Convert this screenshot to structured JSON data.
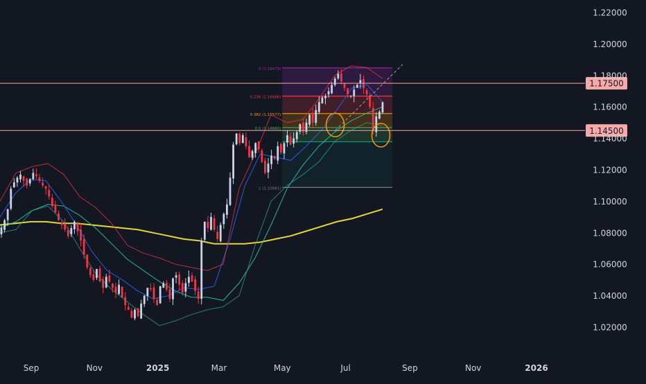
{
  "chart_data": {
    "type": "candlestick",
    "x_axis": {
      "labels": [
        {
          "text": "Sep",
          "date": "2024-09-01",
          "bold": false
        },
        {
          "text": "Nov",
          "date": "2024-11-01",
          "bold": false
        },
        {
          "text": "2025",
          "date": "2025-01-01",
          "bold": true
        },
        {
          "text": "Mar",
          "date": "2025-03-01",
          "bold": false
        },
        {
          "text": "May",
          "date": "2025-05-01",
          "bold": false
        },
        {
          "text": "Jul",
          "date": "2025-07-01",
          "bold": false
        },
        {
          "text": "Sep",
          "date": "2025-09-01",
          "bold": false
        },
        {
          "text": "Nov",
          "date": "2025-11-01",
          "bold": false
        },
        {
          "text": "2026",
          "date": "2026-01-01",
          "bold": true
        }
      ]
    },
    "y_axis": {
      "position": "right",
      "ylim": [
        1.0,
        1.23
      ],
      "ticks": [
        "1.22000",
        "1.20000",
        "1.18000",
        "1.16000",
        "1.14000",
        "1.12000",
        "1.10000",
        "1.08000",
        "1.06000",
        "1.04000",
        "1.02000"
      ]
    },
    "price_closes": [
      [
        1.083,
        1.088,
        1.095,
        1.108,
        1.112,
        1.115,
        1.117,
        1.113,
        1.11,
        1.114,
        1.118,
        1.116,
        1.113,
        1.11,
        1.108,
        1.103,
        1.097,
        1.093,
        1.088,
        1.085,
        1.082,
        1.078,
        1.083,
        1.087,
        1.081,
        1.075,
        1.066,
        1.058,
        1.053,
        1.05,
        1.057,
        1.049,
        1.045,
        1.052,
        1.049,
        1.045,
        1.042,
        1.047,
        1.039,
        1.034,
        1.031,
        1.026,
        1.031,
        1.027,
        1.035,
        1.04,
        1.045,
        1.044,
        1.038,
        1.034,
        1.046,
        1.048,
        1.044,
        1.038,
        1.051,
        1.053,
        1.047,
        1.042,
        1.048,
        1.052,
        1.049,
        1.043,
        1.038,
        1.075,
        1.087,
        1.083,
        1.09,
        1.082,
        1.076,
        1.085,
        1.092,
        1.098,
        1.115,
        1.136,
        1.143,
        1.137,
        1.142,
        1.135,
        1.128,
        1.132,
        1.137,
        1.133,
        1.125,
        1.118,
        1.124,
        1.129,
        1.127,
        1.135,
        1.131,
        1.137,
        1.142,
        1.136,
        1.14,
        1.144,
        1.149,
        1.144,
        1.15,
        1.155,
        1.15,
        1.158,
        1.163,
        1.166,
        1.167,
        1.17,
        1.174,
        1.178,
        1.181,
        1.176,
        1.172,
        1.168,
        1.167,
        1.171,
        1.174,
        1.177,
        1.172,
        1.168,
        1.16,
        1.145,
        1.154,
        1.157,
        1.163
      ]
    ],
    "price_range": [
      1.018,
      1.183
    ],
    "indicators": [
      {
        "kind": "moving-average",
        "color": "#ffeb3b",
        "values": [
          1.085,
          1.086,
          1.087,
          1.087,
          1.086,
          1.086,
          1.085,
          1.084,
          1.083,
          1.082,
          1.08,
          1.078,
          1.076,
          1.075,
          1.073,
          1.073,
          1.073,
          1.074,
          1.076,
          1.078,
          1.081,
          1.084,
          1.087,
          1.089,
          1.092,
          1.095
        ]
      },
      {
        "kind": "moving-average",
        "color": "#26c6a6",
        "values": [
          1.083,
          1.087,
          1.094,
          1.098,
          1.097,
          1.091,
          1.083,
          1.073,
          1.063,
          1.056,
          1.049,
          1.043,
          1.039,
          1.039,
          1.037,
          1.048,
          1.064,
          1.085,
          1.108,
          1.123,
          1.135,
          1.144,
          1.151,
          1.156,
          1.16
        ]
      },
      {
        "kind": "moving-average",
        "color": "#2962ff",
        "values": [
          1.09,
          1.105,
          1.114,
          1.113,
          1.1,
          1.085,
          1.068,
          1.056,
          1.05,
          1.043,
          1.038,
          1.04,
          1.045,
          1.044,
          1.046,
          1.075,
          1.11,
          1.13,
          1.128,
          1.126,
          1.135,
          1.145,
          1.158,
          1.172,
          1.174,
          1.163
        ]
      },
      {
        "kind": "bollinger-upper",
        "color": "#f23645",
        "values": [
          1.1,
          1.118,
          1.122,
          1.124,
          1.117,
          1.103,
          1.096,
          1.086,
          1.072,
          1.067,
          1.064,
          1.06,
          1.058,
          1.056,
          1.06,
          1.108,
          1.13,
          1.155,
          1.15,
          1.152,
          1.165,
          1.18,
          1.186,
          1.185,
          1.178
        ]
      },
      {
        "kind": "bollinger-lower",
        "color": "#26a69a",
        "values": [
          1.08,
          1.082,
          1.094,
          1.097,
          1.087,
          1.07,
          1.054,
          1.044,
          1.036,
          1.028,
          1.021,
          1.024,
          1.028,
          1.031,
          1.033,
          1.04,
          1.072,
          1.1,
          1.11,
          1.117,
          1.125,
          1.138,
          1.145,
          1.15,
          1.148
        ]
      }
    ],
    "fibonacci": {
      "start_date": "2025-05-01",
      "end_date": "2025-08-15",
      "levels": [
        {
          "ratio": "0",
          "label": "0 (1.18479)",
          "price": 1.18479,
          "color": "#9c27b0"
        },
        {
          "ratio": "0.236",
          "label": "0.236 (1.16686)",
          "price": 1.16686,
          "color": "#f23645"
        },
        {
          "ratio": "0.382",
          "label": "0.382 (1.15577)",
          "price": 1.15577,
          "color": "#ff9800"
        },
        {
          "ratio": "0.5",
          "label": "0.5 (1.14680)",
          "price": 1.1468,
          "color": "#4caf50"
        },
        {
          "ratio": "0.618",
          "label": "",
          "price": 1.13784,
          "color": "#089981"
        },
        {
          "ratio": "1",
          "label": "1 (1.10881)",
          "price": 1.10881,
          "color": "#787b86"
        }
      ]
    },
    "horizontal_lines": [
      {
        "price": 1.175,
        "label": "1.17500",
        "color": "#f7a9a8"
      },
      {
        "price": 1.145,
        "label": "1.14500",
        "color": "#f7a9a8"
      }
    ],
    "highlight_circles": [
      {
        "date": "2025-06-21",
        "price": 1.1485,
        "color": "#ff9800"
      },
      {
        "date": "2025-08-04",
        "price": 1.142,
        "color": "#ff9800"
      }
    ],
    "trend_line": {
      "from": [
        "2025-06-21",
        1.145
      ],
      "to": [
        "2025-08-25",
        1.187
      ],
      "color": "#a0a0a0",
      "style": "dashed"
    },
    "colors": {
      "background": "#131722",
      "up": "#c9d4e8",
      "down": "#f23645",
      "axis_text": "#d1d4dc",
      "label_bg": "#f7a9a8",
      "label_text": "#131722"
    }
  }
}
